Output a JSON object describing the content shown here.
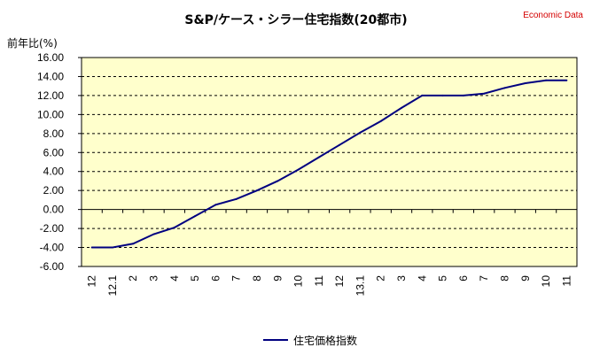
{
  "source_label": "Economic Data",
  "chart_data": {
    "type": "line",
    "title": "S&P/ケース・シラー住宅指数(20都市)",
    "ylabel": "前年比(%)",
    "xlabel": "",
    "ylim": [
      -6.0,
      16.0
    ],
    "yticks": [
      "16.00",
      "14.00",
      "12.00",
      "10.00",
      "8.00",
      "6.00",
      "4.00",
      "2.00",
      "0.00",
      "-2.00",
      "-4.00",
      "-6.00"
    ],
    "categories": [
      "12",
      "12.1",
      "2",
      "3",
      "4",
      "5",
      "6",
      "7",
      "8",
      "9",
      "10",
      "11",
      "12",
      "13.1",
      "2",
      "3",
      "4",
      "5",
      "6",
      "7",
      "8",
      "9",
      "10",
      "11"
    ],
    "grid": true,
    "legend_position": "bottom",
    "colors": {
      "line": "#000080",
      "plot_bg": "#ffffcc",
      "grid": "#000000"
    },
    "series": [
      {
        "name": "住宅価格指数",
        "values": [
          -4.0,
          -4.0,
          -3.6,
          -2.6,
          -1.9,
          -0.7,
          0.5,
          1.1,
          2.0,
          3.0,
          4.2,
          5.5,
          6.8,
          8.1,
          9.3,
          10.7,
          12.0,
          12.0,
          12.0,
          12.2,
          12.8,
          13.3,
          13.6,
          13.6
        ]
      }
    ]
  }
}
